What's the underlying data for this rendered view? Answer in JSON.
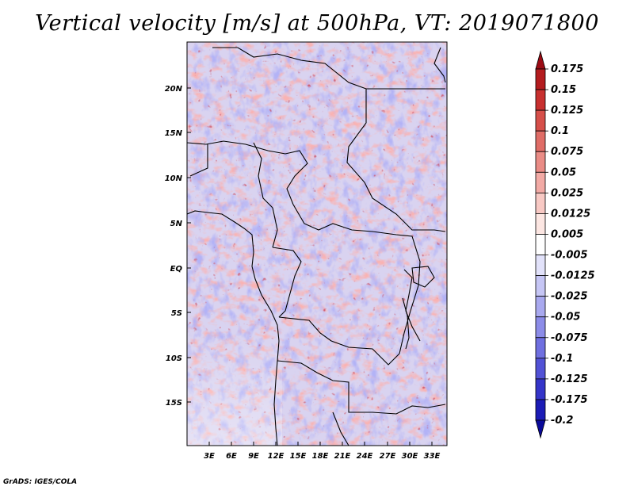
{
  "title": "Vertical velocity [m/s] at 500hPa, VT: 2019071800",
  "credit": "GrADS: IGES/COLA",
  "lat_labels": [
    "20N",
    "15N",
    "10N",
    "5N",
    "EQ",
    "5S",
    "10S",
    "15S"
  ],
  "lon_labels": [
    "3E",
    "6E",
    "9E",
    "12E",
    "15E",
    "18E",
    "21E",
    "24E",
    "27E",
    "30E",
    "33E"
  ],
  "colorbar": {
    "labels": [
      "0.175",
      "0.15",
      "0.125",
      "0.1",
      "0.075",
      "0.05",
      "0.025",
      "0.0125",
      "0.005",
      "-0.005",
      "-0.0125",
      "-0.025",
      "-0.05",
      "-0.075",
      "-0.1",
      "-0.125",
      "-0.175",
      "-0.2"
    ],
    "colors": [
      "#9b0b14",
      "#b41c1f",
      "#c8302f",
      "#d64f4a",
      "#e06d67",
      "#ea8c86",
      "#f2aaa5",
      "#f8c9c4",
      "#fce6e2",
      "#ffffff",
      "#e2e2fa",
      "#c6c6f5",
      "#a9a9ef",
      "#8c8ce8",
      "#6f6fe0",
      "#5252d6",
      "#3535c9",
      "#1c1cb6",
      "#0a0a9a"
    ]
  }
}
